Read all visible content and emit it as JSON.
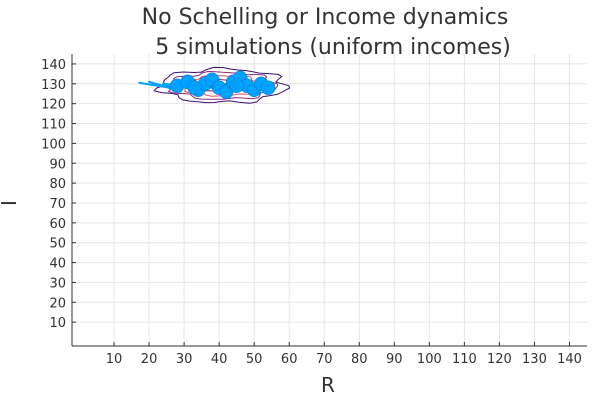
{
  "chart_data": {
    "type": "scatter",
    "title_lines": [
      "No Schelling or Income dynamics",
      "5 simulations (uniform incomes)"
    ],
    "xlabel": "R",
    "ylabel": "I",
    "xlim": [
      -2,
      145
    ],
    "ylim": [
      -2,
      145
    ],
    "xticks": [
      10,
      20,
      30,
      40,
      50,
      60,
      70,
      80,
      90,
      100,
      110,
      120,
      130,
      140
    ],
    "yticks": [
      10,
      20,
      30,
      40,
      50,
      60,
      70,
      80,
      90,
      100,
      110,
      120,
      130,
      140
    ],
    "grid": true,
    "colors": {
      "trajectory": "#00a2ff",
      "contour_outer": "#3b0f70",
      "contour_mid": "#8c2981",
      "contour_inner": "#de4968"
    },
    "trajectory": [
      [
        17,
        130.5
      ],
      [
        26,
        128
      ],
      [
        20,
        131
      ],
      [
        29,
        126
      ],
      [
        24,
        130
      ],
      [
        31,
        129
      ],
      [
        33,
        132
      ],
      [
        35,
        127
      ],
      [
        37,
        130
      ],
      [
        39,
        126.5
      ],
      [
        41,
        129
      ],
      [
        43,
        131
      ],
      [
        45,
        128
      ],
      [
        47,
        130.5
      ],
      [
        49,
        127.5
      ],
      [
        51,
        129.5
      ],
      [
        53,
        128
      ],
      [
        50,
        130
      ],
      [
        46,
        127
      ],
      [
        42,
        130
      ],
      [
        38,
        128
      ],
      [
        34,
        129
      ]
    ],
    "markers": [
      [
        28,
        129
      ],
      [
        31,
        131
      ],
      [
        34,
        127
      ],
      [
        36,
        130
      ],
      [
        38,
        132
      ],
      [
        40,
        128
      ],
      [
        42,
        126
      ],
      [
        44,
        131
      ],
      [
        46,
        133
      ],
      [
        48,
        129
      ],
      [
        50,
        127
      ],
      [
        52,
        130
      ],
      [
        54,
        128
      ],
      [
        33,
        128
      ],
      [
        45,
        129
      ]
    ],
    "density_center": [
      41,
      129
    ],
    "density_levels": [
      {
        "rx": 18,
        "ry": 8.5
      },
      {
        "rx": 15,
        "ry": 6.8
      },
      {
        "rx": 11.5,
        "ry": 5
      },
      {
        "rx": 8,
        "ry": 3.2
      }
    ]
  }
}
